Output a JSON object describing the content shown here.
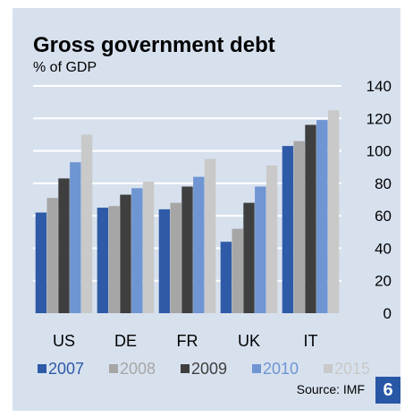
{
  "chart_data": {
    "type": "bar",
    "title": "Gross government debt",
    "subtitle": "% of GDP",
    "categories": [
      "US",
      "DE",
      "FR",
      "UK",
      "IT"
    ],
    "series": [
      {
        "name": "2007",
        "values": [
          62,
          65,
          64,
          44,
          103
        ]
      },
      {
        "name": "2008",
        "values": [
          71,
          66,
          68,
          52,
          106
        ]
      },
      {
        "name": "2009",
        "values": [
          83,
          73,
          78,
          68,
          116
        ]
      },
      {
        "name": "2010",
        "values": [
          93,
          77,
          84,
          78,
          119
        ]
      },
      {
        "name": "2015",
        "values": [
          110,
          81,
          95,
          91,
          125
        ]
      }
    ],
    "ylim": [
      0,
      140
    ],
    "yticks": [
      "0",
      "20",
      "40",
      "60",
      "80",
      "100",
      "120",
      "140"
    ],
    "y_axis_side": "right",
    "grid": true,
    "legend": "bottom"
  },
  "colors": {
    "panel": "#d7e1ee",
    "series": [
      "#2f5aa8",
      "#a6a6a6",
      "#3f3f3f",
      "#6f95d2",
      "#c9c9c9"
    ],
    "legend_text": [
      "#2f5aa8",
      "#a6a6a6",
      "#3f3f3f",
      "#6f95d2",
      "#c9c9c9"
    ],
    "badge": "#2857a5"
  },
  "footer": {
    "source": "Source: IMF",
    "page_number": "6"
  }
}
